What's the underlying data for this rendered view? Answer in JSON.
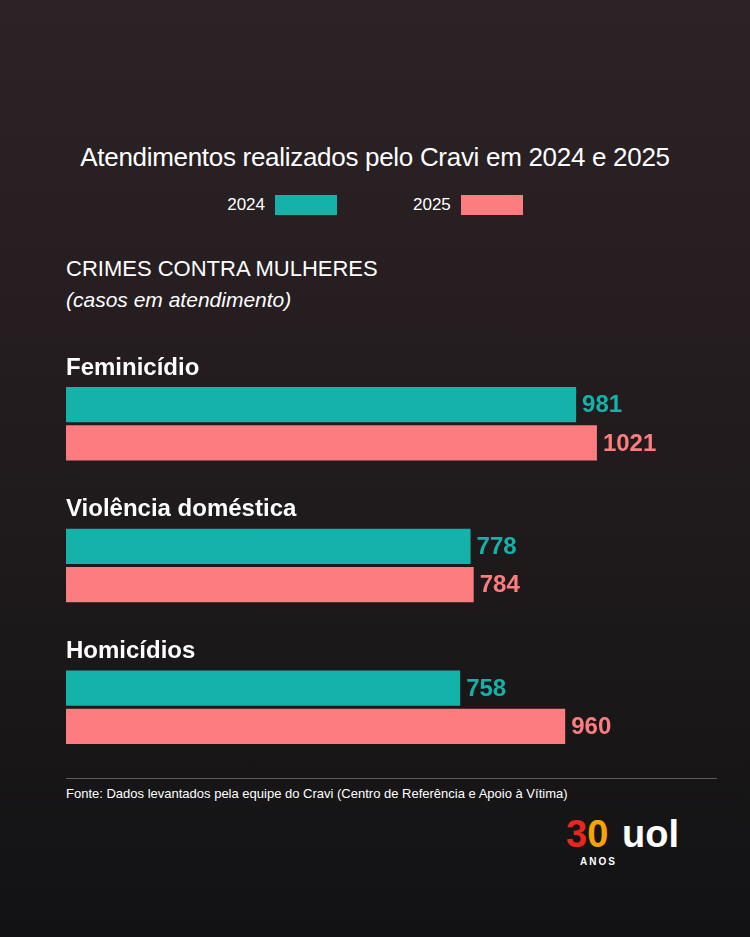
{
  "chart_data": {
    "type": "bar",
    "orientation": "horizontal",
    "title": "Atendimentos realizados pelo Cravi em 2024 e 2025",
    "subtitle": [
      "CRIMES CONTRA MULHERES",
      "(casos em atendimento)"
    ],
    "categories": [
      "Feminicídio",
      "Violência doméstica",
      "Homicídios"
    ],
    "series": [
      {
        "name": "2024",
        "color": "#14b2a9",
        "values": [
          981,
          778,
          758
        ]
      },
      {
        "name": "2025",
        "color": "#fc7c7f",
        "values": [
          1021,
          784,
          960
        ]
      }
    ],
    "xlim": [
      0,
      1250
    ],
    "grid": false,
    "legend": "top",
    "data_labels": true,
    "tick_labels": "y",
    "source": "Fonte: Dados levantados pela equipe do Cravi (Centro de Referência e Apoio à Vítima)",
    "logo": [
      "30",
      "uol",
      "ANOS"
    ]
  }
}
